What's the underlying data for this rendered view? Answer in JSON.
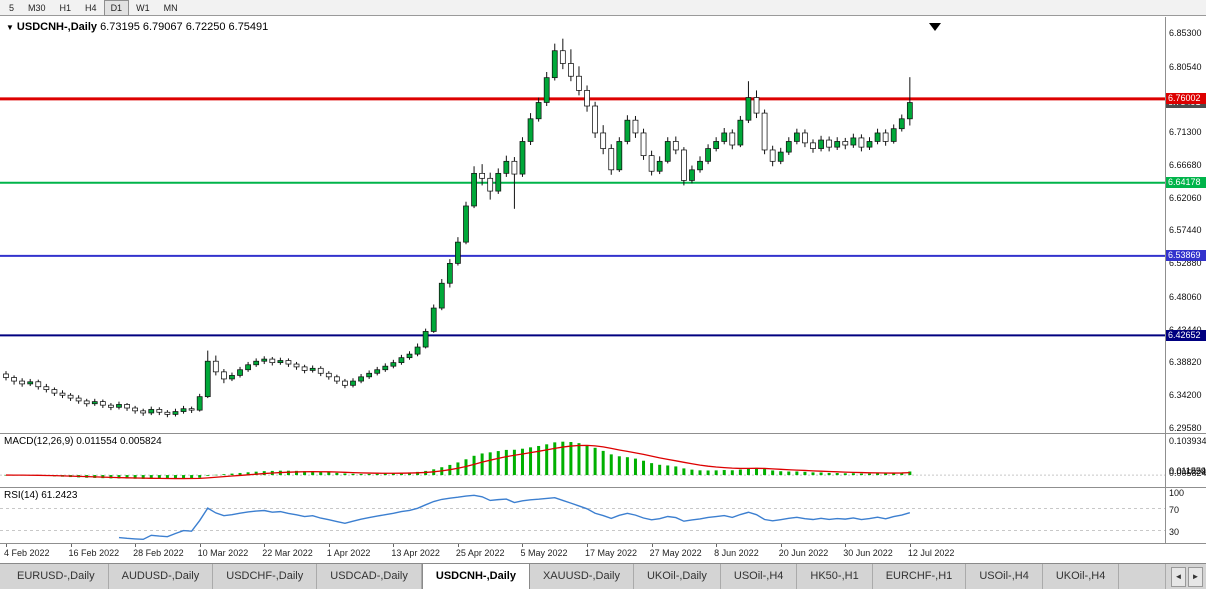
{
  "toolbar": {
    "timeframes": [
      "5",
      "M30",
      "H1",
      "H4",
      "D1",
      "W1",
      "MN"
    ],
    "active": "D1"
  },
  "chart": {
    "title": {
      "symbol": "USDCNH-,Daily",
      "ohlc": "6.73195 6.79067 6.72250 6.75491",
      "dropdown_icon": "▼"
    },
    "macd": {
      "name": "MACD(12,26,9)",
      "values": "0.011554 0.005824"
    },
    "rsi": {
      "name": "RSI(14)",
      "value": "61.2423"
    }
  },
  "chart_data": {
    "type": "candlestick",
    "symbol": "USDCNH",
    "timeframe": "Daily",
    "colors": {
      "bull": "#00a839",
      "bear": "#ffffff",
      "outline": "#111111",
      "macd_hist": "#00b000",
      "macd_signal": "#dd0000",
      "rsi_line": "#3c7fd0",
      "grid_dotted": "#c8c8c8"
    },
    "candles": [
      [
        6.372,
        6.376,
        6.363,
        6.367
      ],
      [
        6.367,
        6.37,
        6.357,
        6.362
      ],
      [
        6.362,
        6.366,
        6.354,
        6.358
      ],
      [
        6.358,
        6.365,
        6.355,
        6.361
      ],
      [
        6.361,
        6.364,
        6.35,
        6.354
      ],
      [
        6.354,
        6.358,
        6.346,
        6.35
      ],
      [
        6.35,
        6.353,
        6.341,
        6.345
      ],
      [
        6.345,
        6.349,
        6.338,
        6.342
      ],
      [
        6.342,
        6.345,
        6.334,
        6.338
      ],
      [
        6.338,
        6.342,
        6.33,
        6.334
      ],
      [
        6.334,
        6.337,
        6.326,
        6.33
      ],
      [
        6.33,
        6.337,
        6.327,
        6.333
      ],
      [
        6.333,
        6.336,
        6.324,
        6.328
      ],
      [
        6.328,
        6.331,
        6.321,
        6.325
      ],
      [
        6.325,
        6.333,
        6.322,
        6.329
      ],
      [
        6.329,
        6.331,
        6.32,
        6.324
      ],
      [
        6.324,
        6.327,
        6.316,
        6.32
      ],
      [
        6.32,
        6.323,
        6.313,
        6.317
      ],
      [
        6.317,
        6.326,
        6.314,
        6.322
      ],
      [
        6.322,
        6.325,
        6.314,
        6.318
      ],
      [
        6.318,
        6.321,
        6.311,
        6.315
      ],
      [
        6.315,
        6.323,
        6.312,
        6.319
      ],
      [
        6.319,
        6.327,
        6.316,
        6.323
      ],
      [
        6.323,
        6.326,
        6.317,
        6.321
      ],
      [
        6.321,
        6.344,
        6.319,
        6.34
      ],
      [
        6.34,
        6.405,
        6.338,
        6.39
      ],
      [
        6.39,
        6.398,
        6.37,
        6.375
      ],
      [
        6.375,
        6.379,
        6.359,
        6.365
      ],
      [
        6.365,
        6.374,
        6.362,
        6.37
      ],
      [
        6.37,
        6.382,
        6.367,
        6.378
      ],
      [
        6.378,
        6.389,
        6.375,
        6.385
      ],
      [
        6.385,
        6.394,
        6.382,
        6.39
      ],
      [
        6.39,
        6.397,
        6.386,
        6.393
      ],
      [
        6.393,
        6.396,
        6.384,
        6.388
      ],
      [
        6.388,
        6.395,
        6.385,
        6.391
      ],
      [
        6.391,
        6.394,
        6.382,
        6.386
      ],
      [
        6.386,
        6.389,
        6.378,
        6.382
      ],
      [
        6.382,
        6.385,
        6.373,
        6.377
      ],
      [
        6.377,
        6.384,
        6.374,
        6.38
      ],
      [
        6.38,
        6.383,
        6.369,
        6.373
      ],
      [
        6.373,
        6.376,
        6.364,
        6.368
      ],
      [
        6.368,
        6.371,
        6.358,
        6.362
      ],
      [
        6.362,
        6.365,
        6.352,
        6.356
      ],
      [
        6.356,
        6.366,
        6.353,
        6.362
      ],
      [
        6.362,
        6.372,
        6.359,
        6.368
      ],
      [
        6.368,
        6.377,
        6.365,
        6.373
      ],
      [
        6.373,
        6.382,
        6.37,
        6.378
      ],
      [
        6.378,
        6.387,
        6.375,
        6.383
      ],
      [
        6.383,
        6.392,
        6.38,
        6.388
      ],
      [
        6.388,
        6.399,
        6.385,
        6.395
      ],
      [
        6.395,
        6.404,
        6.392,
        6.4
      ],
      [
        6.4,
        6.415,
        6.397,
        6.41
      ],
      [
        6.41,
        6.436,
        6.408,
        6.432
      ],
      [
        6.432,
        6.47,
        6.43,
        6.465
      ],
      [
        6.465,
        6.506,
        6.462,
        6.5
      ],
      [
        6.5,
        6.534,
        6.494,
        6.528
      ],
      [
        6.528,
        6.565,
        6.525,
        6.558
      ],
      [
        6.558,
        6.615,
        6.555,
        6.609
      ],
      [
        6.609,
        6.665,
        6.606,
        6.655
      ],
      [
        6.655,
        6.668,
        6.638,
        6.648
      ],
      [
        6.648,
        6.656,
        6.618,
        6.63
      ],
      [
        6.63,
        6.662,
        6.626,
        6.655
      ],
      [
        6.655,
        6.68,
        6.65,
        6.672
      ],
      [
        6.672,
        6.678,
        6.605,
        6.654
      ],
      [
        6.654,
        6.706,
        6.65,
        6.7
      ],
      [
        6.7,
        6.74,
        6.695,
        6.732
      ],
      [
        6.732,
        6.762,
        6.728,
        6.755
      ],
      [
        6.755,
        6.798,
        6.75,
        6.79
      ],
      [
        6.79,
        6.838,
        6.786,
        6.828
      ],
      [
        6.828,
        6.845,
        6.802,
        6.81
      ],
      [
        6.81,
        6.83,
        6.785,
        6.792
      ],
      [
        6.792,
        6.806,
        6.765,
        6.772
      ],
      [
        6.772,
        6.779,
        6.742,
        6.75
      ],
      [
        6.75,
        6.756,
        6.705,
        6.712
      ],
      [
        6.712,
        6.723,
        6.682,
        6.69
      ],
      [
        6.69,
        6.696,
        6.653,
        6.66
      ],
      [
        6.66,
        6.706,
        6.657,
        6.7
      ],
      [
        6.7,
        6.737,
        6.696,
        6.73
      ],
      [
        6.73,
        6.736,
        6.705,
        6.712
      ],
      [
        6.712,
        6.718,
        6.674,
        6.68
      ],
      [
        6.68,
        6.687,
        6.652,
        6.658
      ],
      [
        6.658,
        6.679,
        6.654,
        6.672
      ],
      [
        6.672,
        6.706,
        6.669,
        6.7
      ],
      [
        6.7,
        6.707,
        6.682,
        6.688
      ],
      [
        6.688,
        6.692,
        6.638,
        6.645
      ],
      [
        6.645,
        6.666,
        6.641,
        6.66
      ],
      [
        6.66,
        6.679,
        6.656,
        6.672
      ],
      [
        6.672,
        6.696,
        6.668,
        6.69
      ],
      [
        6.69,
        6.706,
        6.686,
        6.7
      ],
      [
        6.7,
        6.719,
        6.696,
        6.712
      ],
      [
        6.712,
        6.717,
        6.689,
        6.695
      ],
      [
        6.695,
        6.736,
        6.692,
        6.73
      ],
      [
        6.73,
        6.785,
        6.726,
        6.762
      ],
      [
        6.762,
        6.772,
        6.733,
        6.74
      ],
      [
        6.74,
        6.745,
        6.682,
        6.688
      ],
      [
        6.688,
        6.694,
        6.665,
        6.672
      ],
      [
        6.672,
        6.691,
        6.668,
        6.685
      ],
      [
        6.685,
        6.706,
        6.681,
        6.7
      ],
      [
        6.7,
        6.718,
        6.696,
        6.712
      ],
      [
        6.712,
        6.717,
        6.692,
        6.698
      ],
      [
        6.698,
        6.703,
        6.684,
        6.69
      ],
      [
        6.69,
        6.708,
        6.686,
        6.702
      ],
      [
        6.702,
        6.707,
        6.686,
        6.692
      ],
      [
        6.692,
        6.706,
        6.688,
        6.7
      ],
      [
        6.7,
        6.705,
        6.689,
        6.695
      ],
      [
        6.695,
        6.711,
        6.691,
        6.705
      ],
      [
        6.705,
        6.71,
        6.686,
        6.692
      ],
      [
        6.692,
        6.706,
        6.688,
        6.7
      ],
      [
        6.7,
        6.718,
        6.696,
        6.712
      ],
      [
        6.712,
        6.717,
        6.694,
        6.7
      ],
      [
        6.7,
        6.724,
        6.697,
        6.718
      ],
      [
        6.718,
        6.738,
        6.714,
        6.732
      ],
      [
        6.73195,
        6.79067,
        6.7225,
        6.75491
      ]
    ],
    "levels": [
      {
        "price": 6.76002,
        "color": "#dd0000",
        "thickness": 3
      },
      {
        "price": 6.64178,
        "color": "#00b44a",
        "thickness": 2
      },
      {
        "price": 6.53869,
        "color": "#3232cd",
        "thickness": 2
      },
      {
        "price": 6.42652,
        "color": "#000080",
        "thickness": 2
      }
    ],
    "price_badges": [
      {
        "value": 6.42652,
        "color": "#000080"
      },
      {
        "value": 6.53869,
        "color": "#3232cd"
      },
      {
        "value": 6.64178,
        "color": "#00b44a"
      },
      {
        "value": 6.75491,
        "color": "#4d4d4d"
      },
      {
        "value": 6.76002,
        "color": "#dd0000"
      }
    ],
    "y_ticks": [
      6.853,
      6.8054,
      6.713,
      6.6668,
      6.6206,
      6.5744,
      6.5288,
      6.4806,
      6.4344,
      6.3882,
      6.342,
      6.2958
    ],
    "x_labels": [
      {
        "d": 0,
        "label": "4 Feb 2022"
      },
      {
        "d": 8,
        "label": "16 Feb 2022"
      },
      {
        "d": 16,
        "label": "28 Feb 2022"
      },
      {
        "d": 24,
        "label": "10 Mar 2022"
      },
      {
        "d": 32,
        "label": "22 Mar 2022"
      },
      {
        "d": 40,
        "label": "1 Apr 2022"
      },
      {
        "d": 48,
        "label": "13 Apr 2022"
      },
      {
        "d": 56,
        "label": "25 Apr 2022"
      },
      {
        "d": 64,
        "label": "5 May 2022"
      },
      {
        "d": 72,
        "label": "17 May 2022"
      },
      {
        "d": 80,
        "label": "27 May 2022"
      },
      {
        "d": 88,
        "label": "8 Jun 2022"
      },
      {
        "d": 96,
        "label": "20 Jun 2022"
      },
      {
        "d": 104,
        "label": "30 Jun 2022"
      },
      {
        "d": 112,
        "label": "12 Jul 2022"
      }
    ],
    "macd": {
      "params": [
        12,
        26,
        9
      ],
      "axis_labels": [
        0.103934,
        0.011829
      ],
      "current_main": 0.011554,
      "current_signal": 0.005824
    },
    "rsi": {
      "period": 14,
      "axis_labels": [
        100,
        70,
        30
      ],
      "level_lines": [
        70,
        30
      ],
      "current": 61.2423
    }
  },
  "tabs": {
    "items": [
      {
        "label": "EURUSD-,Daily",
        "active": false
      },
      {
        "label": "AUDUSD-,Daily",
        "active": false
      },
      {
        "label": "USDCHF-,Daily",
        "active": false
      },
      {
        "label": "USDCAD-,Daily",
        "active": false
      },
      {
        "label": "USDCNH-,Daily",
        "active": true
      },
      {
        "label": "XAUUSD-,Daily",
        "active": false
      },
      {
        "label": "UKOil-,Daily",
        "active": false
      },
      {
        "label": "USOil-,H4",
        "active": false
      },
      {
        "label": "HK50-,H1",
        "active": false
      },
      {
        "label": "EURCHF-,H1",
        "active": false
      },
      {
        "label": "USOil-,H4",
        "active": false
      },
      {
        "label": "UKOil-,H4",
        "active": false
      }
    ],
    "scroll_left": "◄",
    "scroll_right": "►"
  }
}
